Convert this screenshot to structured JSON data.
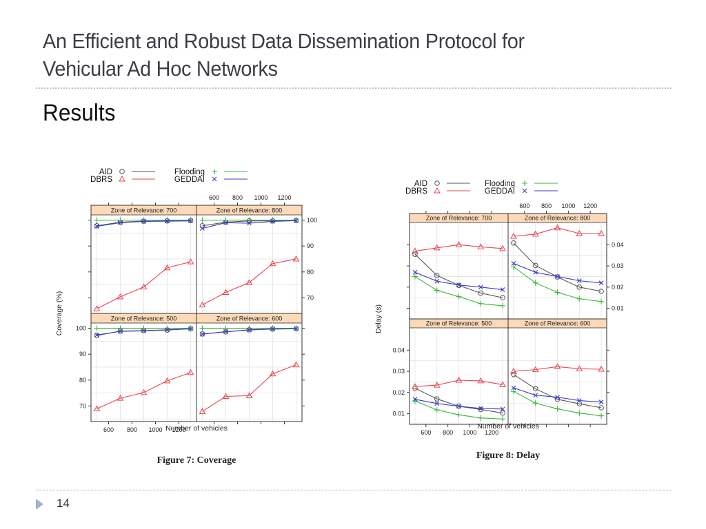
{
  "slide": {
    "title": "An Efficient and Robust Data Dissemination Protocol for Vehicular Ad Hoc Networks",
    "title_line1": "An Efficient and Robust Data Dissemination Protocol for",
    "title_line2": "Vehicular Ad Hoc Networks",
    "subtitle": "Results",
    "page_number": "14"
  },
  "colors": {
    "AID": "#555555",
    "DBRS": "#e8434a",
    "Flooding": "#3cb53c",
    "GEDDAI": "#3a3acc",
    "strip": "#fcd9b8",
    "grid": "#e3e3e3"
  },
  "chart_data": [
    {
      "type": "line",
      "id": "fig7",
      "title": "Figure 7: Coverage",
      "xlabel": "Number of vehicles",
      "ylabel": "Coverage (%)",
      "x": [
        500,
        700,
        900,
        1100,
        1300
      ],
      "xlim": [
        450,
        1350
      ],
      "xticks": [
        600,
        800,
        1000,
        1200
      ],
      "ylim": [
        64,
        102
      ],
      "yticks": [
        70,
        80,
        90,
        100
      ],
      "grid": true,
      "legend_position": "top",
      "legend": [
        {
          "name": "AID",
          "marker": "circle"
        },
        {
          "name": "DBRS",
          "marker": "triangle"
        },
        {
          "name": "Flooding",
          "marker": "plus"
        },
        {
          "name": "GEDDAI",
          "marker": "cross"
        }
      ],
      "panels": [
        {
          "strip": "Zone of Relevance: 700",
          "row": 0,
          "col": 0,
          "series": [
            {
              "name": "AID",
              "values": [
                97.8,
                99.2,
                99.6,
                99.7,
                99.8
              ]
            },
            {
              "name": "DBRS",
              "values": [
                65.8,
                70.4,
                74.2,
                81.6,
                83.9
              ]
            },
            {
              "name": "Flooding",
              "values": [
                100,
                100,
                100,
                100,
                100
              ]
            },
            {
              "name": "GEDDAI",
              "values": [
                97.6,
                99.0,
                99.5,
                99.6,
                99.7
              ]
            }
          ]
        },
        {
          "strip": "Zone of Relevance: 800",
          "row": 0,
          "col": 1,
          "series": [
            {
              "name": "AID",
              "values": [
                97.8,
                99.2,
                99.7,
                99.7,
                99.8
              ]
            },
            {
              "name": "DBRS",
              "values": [
                67.3,
                72.1,
                75.9,
                83.2,
                85.0
              ]
            },
            {
              "name": "Flooding",
              "values": [
                100,
                100,
                100,
                100,
                100
              ]
            },
            {
              "name": "GEDDAI",
              "values": [
                96.8,
                99.0,
                98.8,
                99.5,
                99.8
              ]
            }
          ]
        },
        {
          "strip": "Zone of Relevance: 500",
          "row": 1,
          "col": 0,
          "series": [
            {
              "name": "AID",
              "values": [
                97.2,
                98.9,
                99.1,
                99.3,
                99.8
              ]
            },
            {
              "name": "DBRS",
              "values": [
                68.9,
                73.0,
                75.2,
                79.7,
                82.9
              ]
            },
            {
              "name": "Flooding",
              "values": [
                100,
                100,
                100,
                100,
                100
              ]
            },
            {
              "name": "GEDDAI",
              "values": [
                97.4,
                98.8,
                99.0,
                99.4,
                99.8
              ]
            }
          ]
        },
        {
          "strip": "Zone of Relevance: 600",
          "row": 1,
          "col": 1,
          "series": [
            {
              "name": "AID",
              "values": [
                97.8,
                98.6,
                99.4,
                99.7,
                99.8
              ]
            },
            {
              "name": "DBRS",
              "values": [
                67.9,
                73.7,
                74.0,
                82.4,
                85.9
              ]
            },
            {
              "name": "Flooding",
              "values": [
                100,
                100,
                100,
                100,
                100
              ]
            },
            {
              "name": "GEDDAI",
              "values": [
                97.7,
                98.7,
                99.3,
                99.7,
                99.8
              ]
            }
          ]
        }
      ]
    },
    {
      "type": "line",
      "id": "fig8",
      "title": "Figure 8: Delay",
      "xlabel": "Number of vehicles",
      "ylabel": "Delay (s)",
      "x": [
        500,
        700,
        900,
        1100,
        1300
      ],
      "xlim": [
        450,
        1350
      ],
      "xticks": [
        600,
        800,
        1000,
        1200
      ],
      "ylim": [
        0.005,
        0.0505
      ],
      "yticks": [
        0.01,
        0.02,
        0.03,
        0.04
      ],
      "grid": true,
      "legend_position": "top",
      "legend": [
        {
          "name": "AID",
          "marker": "circle"
        },
        {
          "name": "DBRS",
          "marker": "triangle"
        },
        {
          "name": "Flooding",
          "marker": "plus"
        },
        {
          "name": "GEDDAI",
          "marker": "cross"
        }
      ],
      "panels": [
        {
          "strip": "Zone of Relevance: 700",
          "row": 0,
          "col": 0,
          "series": [
            {
              "name": "AID",
              "values": [
                0.0355,
                0.0255,
                0.0208,
                0.0172,
                0.015
              ]
            },
            {
              "name": "DBRS",
              "values": [
                0.037,
                0.0385,
                0.04,
                0.039,
                0.0382
              ]
            },
            {
              "name": "Flooding",
              "values": [
                0.025,
                0.0185,
                0.0155,
                0.0122,
                0.0112
              ]
            },
            {
              "name": "GEDDAI",
              "values": [
                0.027,
                0.0228,
                0.021,
                0.02,
                0.0188
              ]
            }
          ]
        },
        {
          "strip": "Zone of Relevance: 800",
          "row": 0,
          "col": 1,
          "series": [
            {
              "name": "AID",
              "values": [
                0.0408,
                0.0302,
                0.0248,
                0.02,
                0.018
              ]
            },
            {
              "name": "DBRS",
              "values": [
                0.044,
                0.045,
                0.048,
                0.0453,
                0.0453
              ]
            },
            {
              "name": "Flooding",
              "values": [
                0.0295,
                0.022,
                0.0175,
                0.0145,
                0.0132
              ]
            },
            {
              "name": "GEDDAI",
              "values": [
                0.0312,
                0.027,
                0.025,
                0.023,
                0.022
              ]
            }
          ]
        },
        {
          "strip": "Zone of Relevance: 500",
          "row": 1,
          "col": 0,
          "series": [
            {
              "name": "AID",
              "values": [
                0.022,
                0.017,
                0.0135,
                0.012,
                0.0103
              ]
            },
            {
              "name": "DBRS",
              "values": [
                0.0228,
                0.0235,
                0.0258,
                0.0255,
                0.0237
              ]
            },
            {
              "name": "Flooding",
              "values": [
                0.016,
                0.0118,
                0.0095,
                0.008,
                0.0075
              ]
            },
            {
              "name": "GEDDAI",
              "values": [
                0.0168,
                0.0148,
                0.0135,
                0.0125,
                0.0122
              ]
            }
          ]
        },
        {
          "strip": "Zone of Relevance: 600",
          "row": 1,
          "col": 1,
          "series": [
            {
              "name": "AID",
              "values": [
                0.0285,
                0.0218,
                0.0168,
                0.0147,
                0.0128
              ]
            },
            {
              "name": "DBRS",
              "values": [
                0.03,
                0.0308,
                0.0322,
                0.0312,
                0.031
              ]
            },
            {
              "name": "Flooding",
              "values": [
                0.0205,
                0.015,
                0.0123,
                0.0103,
                0.009
              ]
            },
            {
              "name": "GEDDAI",
              "values": [
                0.0222,
                0.0187,
                0.0178,
                0.0162,
                0.0155
              ]
            }
          ]
        }
      ]
    }
  ]
}
